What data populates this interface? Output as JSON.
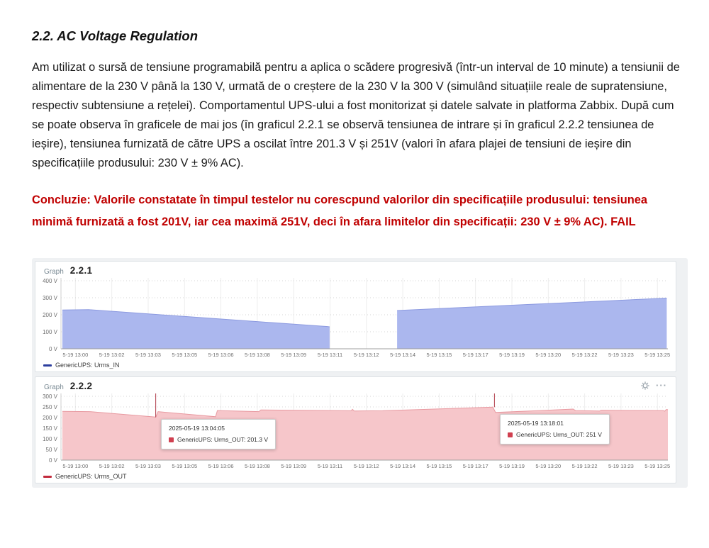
{
  "document": {
    "heading": "2.2. AC Voltage Regulation",
    "paragraph": "Am utilizat o sursă de tensiune programabilă pentru a aplica o scădere progresivă (într-un interval de 10 minute) a tensiunii de alimentare de la 230 V până la 130 V, urmată de o creștere de la 230 V la 300 V (simulând situațiile reale de supratensiune, respectiv subtensiune a rețelei). Comportamentul UPS-ului a fost monitorizat și datele salvate in platforma Zabbix. După cum se poate observa în graficele de mai jos (în graficul 2.2.1 se observă tensiunea de intrare și în graficul 2.2.2 tensiunea de ieșire), tensiunea furnizată de către UPS a oscilat între 201.3 V și 251V (valori în afara plajei de tensiuni de ieșire din specificațiile produsului: 230 V ± 9% AC).",
    "conclusion": "Concluzie: Valorile constatate în timpul testelor nu corescpund valorilor din specificațiile produsului: tensiunea minimă furnizată a fost 201V, iar cea maximă 251V, deci în afara limitelor din specificații: 230 V ± 9% AC). FAIL",
    "text_color": "#1b1b1b",
    "conclusion_color": "#c00000"
  },
  "dashboard": {
    "background": "#eff1f3",
    "panels": [
      {
        "kind_label": "Graph",
        "number": "2.2.1",
        "legend": {
          "label": "GenericUPS: Urms_IN",
          "color": "#2c3e9e"
        }
      },
      {
        "kind_label": "Graph",
        "number": "2.2.2",
        "legend": {
          "label": "GenericUPS: Urms_OUT",
          "color": "#c22b3d"
        },
        "icons": [
          {
            "name": "gear-icon"
          },
          {
            "name": "ellipsis-menu-icon",
            "glyph": "···"
          }
        ],
        "tooltips": [
          {
            "time": "2025-05-19 13:04:05",
            "label": "GenericUPS: Urms_OUT: 201.3 V",
            "marker_color": "#d04050"
          },
          {
            "time": "2025-05-19 13:18:01",
            "label": "GenericUPS: Urms_OUT: 251 V",
            "marker_color": "#d04050"
          }
        ]
      }
    ]
  },
  "chart_data": [
    {
      "type": "area",
      "title": "2.2.1",
      "series_name": "GenericUPS: Urms_IN",
      "unit": "V",
      "ylim": [
        0,
        400
      ],
      "y_ticks": [
        400,
        300,
        200,
        100,
        0
      ],
      "x_tick_labels": [
        "5-19 13:00",
        "5-19 13:02",
        "5-19 13:03",
        "5-19 13:05",
        "5-19 13:06",
        "5-19 13:08",
        "5-19 13:09",
        "5-19 13:11",
        "5-19 13:12",
        "5-19 13:14",
        "5-19 13:15",
        "5-19 13:17",
        "5-19 13:19",
        "5-19 13:20",
        "5-19 13:22",
        "5-19 13:23",
        "5-19 13:25"
      ],
      "x_range_minutes": [
        -0.62,
        25.45
      ],
      "grid": true,
      "legend_position": "bottom",
      "series": [
        {
          "name": "GenericUPS: Urms_IN",
          "fill": "#abb7ee",
          "stroke": "#8c9ae0",
          "segments": [
            [
              [
                -0.56,
                228
              ],
              [
                0.57,
                230
              ],
              [
                10.83,
                131
              ],
              [
                10.92,
                129
              ]
            ],
            [
              [
                13.82,
                225
              ],
              [
                25.4,
                298
              ]
            ]
          ]
        }
      ],
      "crosshairs": []
    },
    {
      "type": "area",
      "title": "2.2.2",
      "series_name": "GenericUPS: Urms_OUT",
      "unit": "V",
      "ylim": [
        0,
        300
      ],
      "y_ticks": [
        300,
        250,
        200,
        150,
        100,
        50,
        0
      ],
      "x_tick_labels": [
        "5-19 13:00",
        "5-19 13:02",
        "5-19 13:03",
        "5-19 13:05",
        "5-19 13:06",
        "5-19 13:08",
        "5-19 13:09",
        "5-19 13:11",
        "5-19 13:12",
        "5-19 13:14",
        "5-19 13:15",
        "5-19 13:17",
        "5-19 13:19",
        "5-19 13:20",
        "5-19 13:22",
        "5-19 13:23",
        "5-19 13:25"
      ],
      "x_range_minutes": [
        -0.62,
        25.45
      ],
      "grid": true,
      "legend_position": "bottom",
      "series": [
        {
          "name": "GenericUPS: Urms_OUT",
          "fill": "#f6c6ca",
          "stroke": "#e89aa1",
          "segments": [
            [
              [
                -0.56,
                229
              ],
              [
                0.6,
                228
              ],
              [
                3.4,
                203
              ],
              [
                3.45,
                201.3
              ],
              [
                3.55,
                228
              ],
              [
                6.02,
                204
              ],
              [
                6.1,
                233
              ],
              [
                7.88,
                228
              ],
              [
                7.97,
                236
              ],
              [
                11.85,
                232
              ],
              [
                11.9,
                239
              ],
              [
                11.98,
                231
              ],
              [
                13.2,
                232
              ],
              [
                17.93,
                249
              ],
              [
                18.05,
                224
              ],
              [
                19.97,
                233
              ],
              [
                21.38,
                240
              ],
              [
                21.48,
                233
              ],
              [
                22.52,
                231
              ],
              [
                22.58,
                234
              ],
              [
                25.25,
                233
              ],
              [
                25.32,
                230
              ],
              [
                25.38,
                238
              ],
              [
                25.45,
                237
              ]
            ]
          ]
        }
      ],
      "crosshairs": [
        {
          "x_min": 3.45,
          "value": 202,
          "color": "#b03a48"
        },
        {
          "x_min": 18.0,
          "value": 249,
          "color": "#b03a48"
        }
      ]
    }
  ]
}
